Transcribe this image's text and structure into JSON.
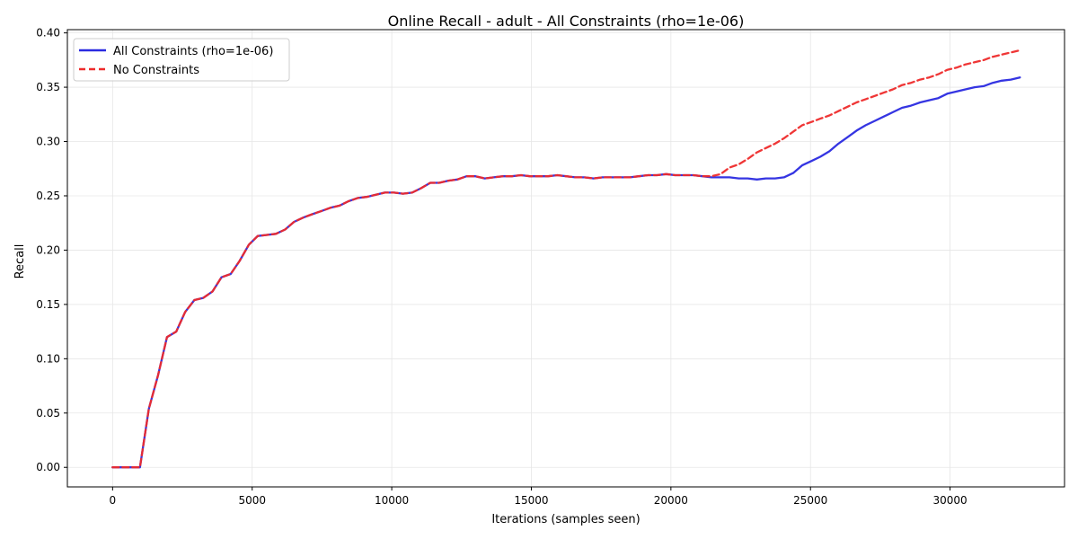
{
  "chart_data": {
    "type": "line",
    "title": "Online Recall - adult - All Constraints (rho=1e-06)",
    "xlabel": "Iterations (samples seen)",
    "ylabel": "Recall",
    "xlim": [
      -1620,
      34100
    ],
    "ylim": [
      -0.018,
      0.403
    ],
    "x_ticks": [
      0,
      5000,
      10000,
      15000,
      20000,
      25000,
      30000
    ],
    "y_ticks": [
      0.0,
      0.05,
      0.1,
      0.15,
      0.2,
      0.25,
      0.3,
      0.35,
      0.4
    ],
    "y_tick_labels": [
      "0.00",
      "0.05",
      "0.10",
      "0.15",
      "0.20",
      "0.25",
      "0.30",
      "0.35",
      "0.40"
    ],
    "grid": true,
    "legend_position": "top-left",
    "series": [
      {
        "name": "All Constraints (rho=1e-06)",
        "color": "#2a2ae0",
        "style": "solid",
        "x": [
          0,
          330,
          650,
          980,
          1300,
          1630,
          1950,
          2280,
          2600,
          2930,
          3250,
          3580,
          3900,
          4230,
          4550,
          4880,
          5200,
          5530,
          5850,
          6180,
          6500,
          6830,
          7150,
          7480,
          7800,
          8130,
          8450,
          8780,
          9100,
          9430,
          9750,
          10080,
          10400,
          10730,
          11050,
          11380,
          11700,
          12030,
          12350,
          12680,
          13000,
          13330,
          13650,
          13980,
          14300,
          14630,
          14950,
          15280,
          15600,
          15930,
          16250,
          16580,
          16900,
          17230,
          17550,
          17880,
          18200,
          18530,
          18850,
          19180,
          19500,
          19830,
          20150,
          20480,
          20800,
          21130,
          21450,
          21780,
          22100,
          22430,
          22750,
          23080,
          23400,
          23730,
          24050,
          24380,
          24700,
          25030,
          25350,
          25680,
          26000,
          26330,
          26650,
          26980,
          27300,
          27630,
          27950,
          28280,
          28600,
          28930,
          29250,
          29580,
          29900,
          30230,
          30550,
          30880,
          31200,
          31530,
          31850,
          32180,
          32500
        ],
        "values": [
          0.0,
          0.0,
          0.0,
          0.0,
          0.054,
          0.085,
          0.12,
          0.125,
          0.143,
          0.154,
          0.156,
          0.162,
          0.175,
          0.178,
          0.19,
          0.205,
          0.213,
          0.214,
          0.215,
          0.219,
          0.226,
          0.23,
          0.233,
          0.236,
          0.239,
          0.241,
          0.245,
          0.248,
          0.249,
          0.251,
          0.253,
          0.253,
          0.252,
          0.253,
          0.257,
          0.262,
          0.262,
          0.264,
          0.265,
          0.268,
          0.268,
          0.266,
          0.267,
          0.268,
          0.268,
          0.269,
          0.268,
          0.268,
          0.268,
          0.269,
          0.268,
          0.267,
          0.267,
          0.266,
          0.267,
          0.267,
          0.267,
          0.267,
          0.268,
          0.269,
          0.269,
          0.27,
          0.269,
          0.269,
          0.269,
          0.268,
          0.267,
          0.267,
          0.267,
          0.266,
          0.266,
          0.265,
          0.266,
          0.266,
          0.267,
          0.271,
          0.278,
          0.282,
          0.286,
          0.291,
          0.298,
          0.304,
          0.31,
          0.315,
          0.319,
          0.323,
          0.327,
          0.331,
          0.333,
          0.336,
          0.338,
          0.34,
          0.344,
          0.346,
          0.348,
          0.35,
          0.351,
          0.354,
          0.356,
          0.357,
          0.359
        ]
      },
      {
        "name": "No Constraints",
        "color": "#ee2b2b",
        "style": "dashed",
        "x": [
          0,
          330,
          650,
          980,
          1300,
          1630,
          1950,
          2280,
          2600,
          2930,
          3250,
          3580,
          3900,
          4230,
          4550,
          4880,
          5200,
          5530,
          5850,
          6180,
          6500,
          6830,
          7150,
          7480,
          7800,
          8130,
          8450,
          8780,
          9100,
          9430,
          9750,
          10080,
          10400,
          10730,
          11050,
          11380,
          11700,
          12030,
          12350,
          12680,
          13000,
          13330,
          13650,
          13980,
          14300,
          14630,
          14950,
          15280,
          15600,
          15930,
          16250,
          16580,
          16900,
          17230,
          17550,
          17880,
          18200,
          18530,
          18850,
          19180,
          19500,
          19830,
          20150,
          20480,
          20800,
          21130,
          21450,
          21780,
          22100,
          22430,
          22750,
          23080,
          23400,
          23730,
          24050,
          24380,
          24700,
          25030,
          25350,
          25680,
          26000,
          26330,
          26650,
          26980,
          27300,
          27630,
          27950,
          28280,
          28600,
          28930,
          29250,
          29580,
          29900,
          30230,
          30550,
          30880,
          31200,
          31530,
          31850,
          32180,
          32500
        ],
        "values": [
          0.0,
          0.0,
          0.0,
          0.0,
          0.054,
          0.085,
          0.12,
          0.125,
          0.143,
          0.154,
          0.156,
          0.162,
          0.175,
          0.178,
          0.19,
          0.205,
          0.213,
          0.214,
          0.215,
          0.219,
          0.226,
          0.23,
          0.233,
          0.236,
          0.239,
          0.241,
          0.245,
          0.248,
          0.249,
          0.251,
          0.253,
          0.253,
          0.252,
          0.253,
          0.257,
          0.262,
          0.262,
          0.264,
          0.265,
          0.268,
          0.268,
          0.266,
          0.267,
          0.268,
          0.268,
          0.269,
          0.268,
          0.268,
          0.268,
          0.269,
          0.268,
          0.267,
          0.267,
          0.266,
          0.267,
          0.267,
          0.267,
          0.267,
          0.268,
          0.269,
          0.269,
          0.27,
          0.269,
          0.269,
          0.269,
          0.268,
          0.268,
          0.27,
          0.276,
          0.279,
          0.284,
          0.29,
          0.294,
          0.298,
          0.303,
          0.309,
          0.315,
          0.318,
          0.321,
          0.324,
          0.328,
          0.332,
          0.336,
          0.339,
          0.342,
          0.345,
          0.348,
          0.352,
          0.354,
          0.357,
          0.359,
          0.362,
          0.366,
          0.368,
          0.371,
          0.373,
          0.375,
          0.378,
          0.38,
          0.382,
          0.384
        ]
      }
    ]
  }
}
